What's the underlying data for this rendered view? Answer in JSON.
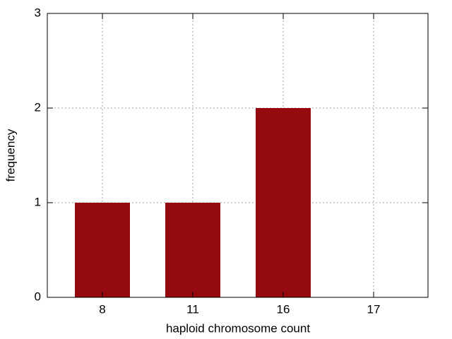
{
  "chart_data": {
    "type": "bar",
    "x_label": "haploid chromosome count",
    "y_label": "frequency",
    "categories": [
      "8",
      "11",
      "16",
      "17"
    ],
    "values": [
      1,
      1,
      2,
      0
    ],
    "color": "#940a0e",
    "ylim": [
      0,
      3
    ],
    "yticks": [
      0,
      1,
      2,
      3
    ],
    "grid": true
  }
}
